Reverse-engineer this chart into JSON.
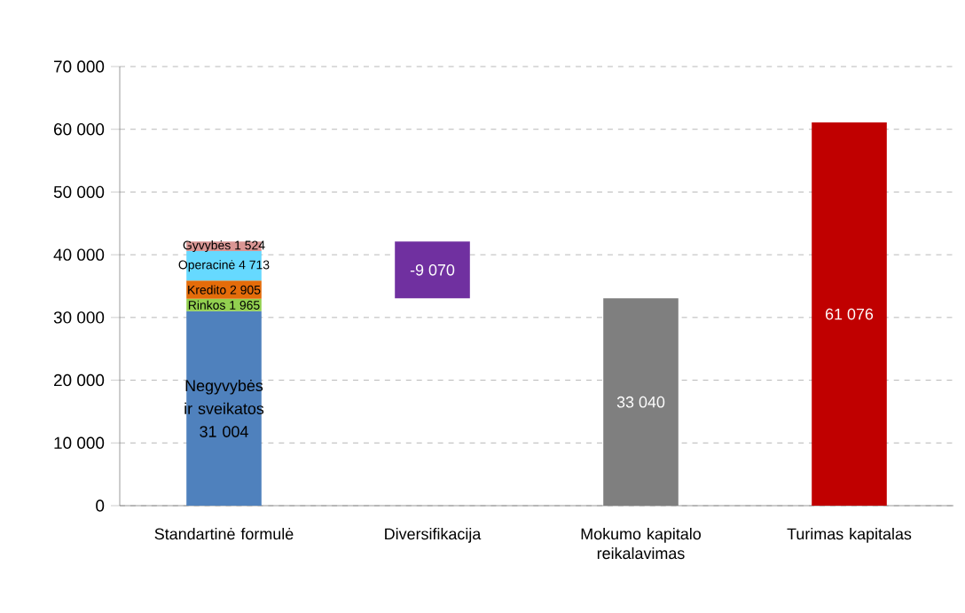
{
  "chart_data": {
    "type": "bar",
    "stacked": true,
    "categories": [
      "Standartinė formulė",
      "Diversifikacija",
      "Mokumo kapitalo reikalavimas",
      "Turimas kapitalas"
    ],
    "ylim": [
      0,
      70000
    ],
    "yticks": [
      0,
      {
        "value": 10000,
        "label": "10 000"
      },
      {
        "value": 20000,
        "label": "20 000"
      },
      {
        "value": 30000,
        "label": "30 000"
      },
      {
        "value": 40000,
        "label": "40 000"
      },
      {
        "value": 50000,
        "label": "50 000"
      },
      {
        "value": 60000,
        "label": "60 000"
      },
      {
        "value": 70000,
        "label": "70 000"
      }
    ],
    "grid": "y",
    "series": [
      {
        "name": "Negyvybės ir sveikatos",
        "color": "#4f81bd",
        "values": [
          31004,
          null,
          null,
          null
        ],
        "value_labels": [
          "31 004",
          null,
          null,
          null
        ]
      },
      {
        "name": "Rinkos",
        "color": "#92d050",
        "values": [
          1965,
          null,
          null,
          null
        ],
        "value_labels": [
          "1 965",
          null,
          null,
          null
        ]
      },
      {
        "name": "Kredito",
        "color": "#e46c0a",
        "values": [
          2905,
          null,
          null,
          null
        ],
        "value_labels": [
          "2 905",
          null,
          null,
          null
        ]
      },
      {
        "name": "Operacinė",
        "color": "#66d9ff",
        "values": [
          4713,
          null,
          null,
          null
        ],
        "value_labels": [
          "4 713",
          null,
          null,
          null
        ]
      },
      {
        "name": "Gyvybės",
        "color": "#d99694",
        "values": [
          1524,
          null,
          null,
          null
        ],
        "value_labels": [
          "1 524",
          null,
          null,
          null
        ]
      },
      {
        "color": "#7030a0",
        "values": [
          null,
          -9070,
          null,
          null
        ],
        "base": [
          null,
          42111,
          null,
          null
        ],
        "value_labels": [
          null,
          "-9 070",
          null,
          null
        ]
      },
      {
        "color": "#7f7f7f",
        "values": [
          null,
          null,
          33040,
          null
        ],
        "value_labels": [
          null,
          null,
          "33 040",
          null
        ]
      },
      {
        "color": "#c00000",
        "values": [
          null,
          null,
          null,
          61076
        ],
        "value_labels": [
          null,
          null,
          null,
          "61 076"
        ]
      }
    ]
  }
}
